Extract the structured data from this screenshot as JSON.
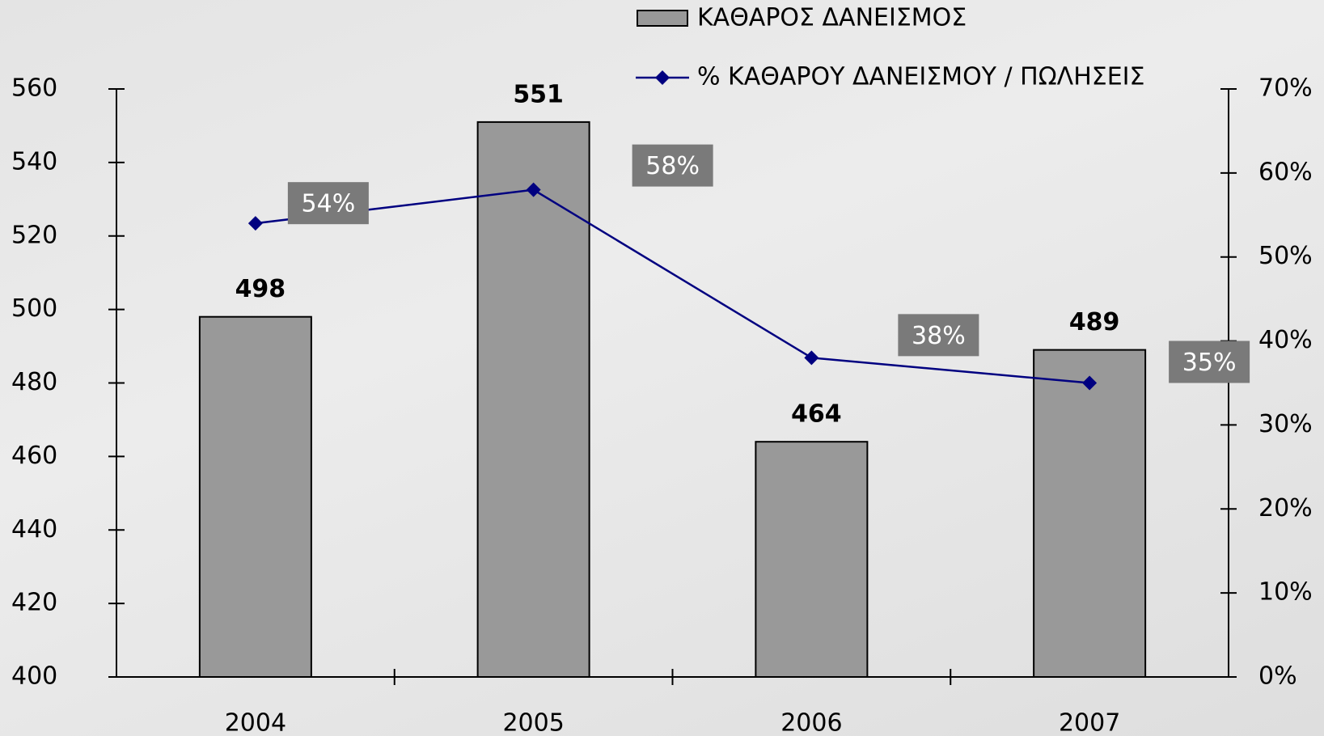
{
  "chart_data": {
    "type": "bar",
    "categories": [
      "2004",
      "2005",
      "2006",
      "2007"
    ],
    "series": [
      {
        "name": "ΚΑΘΑΡΟΣ  ΔΑΝΕΙΣΜΟΣ",
        "color": "#999999",
        "values": [
          498,
          551,
          464,
          489
        ]
      },
      {
        "name": "% ΚΑΘΑΡΟΥ  ΔΑΝΕΙΣΜΟΥ  / ΠΩΛΗΣΕΙΣ",
        "type": "line",
        "axis": "y2",
        "color": "#000080",
        "values": [
          54,
          58,
          38,
          35
        ],
        "value_labels": [
          "54%",
          "58%",
          "38%",
          "35%"
        ]
      }
    ],
    "ylim": [
      400,
      560
    ],
    "yticks": [
      400,
      420,
      440,
      460,
      480,
      500,
      520,
      540,
      560
    ],
    "y2lim": [
      0,
      70
    ],
    "y2ticks": [
      {
        "value": 0,
        "label": "0%"
      },
      {
        "value": 10,
        "label": "10%"
      },
      {
        "value": 20,
        "label": "20%"
      },
      {
        "value": 30,
        "label": "30%"
      },
      {
        "value": 40,
        "label": "40%"
      },
      {
        "value": 50,
        "label": "50%"
      },
      {
        "value": 60,
        "label": "60%"
      },
      {
        "value": 70,
        "label": "70%"
      }
    ],
    "grid": false,
    "legend": "top"
  }
}
